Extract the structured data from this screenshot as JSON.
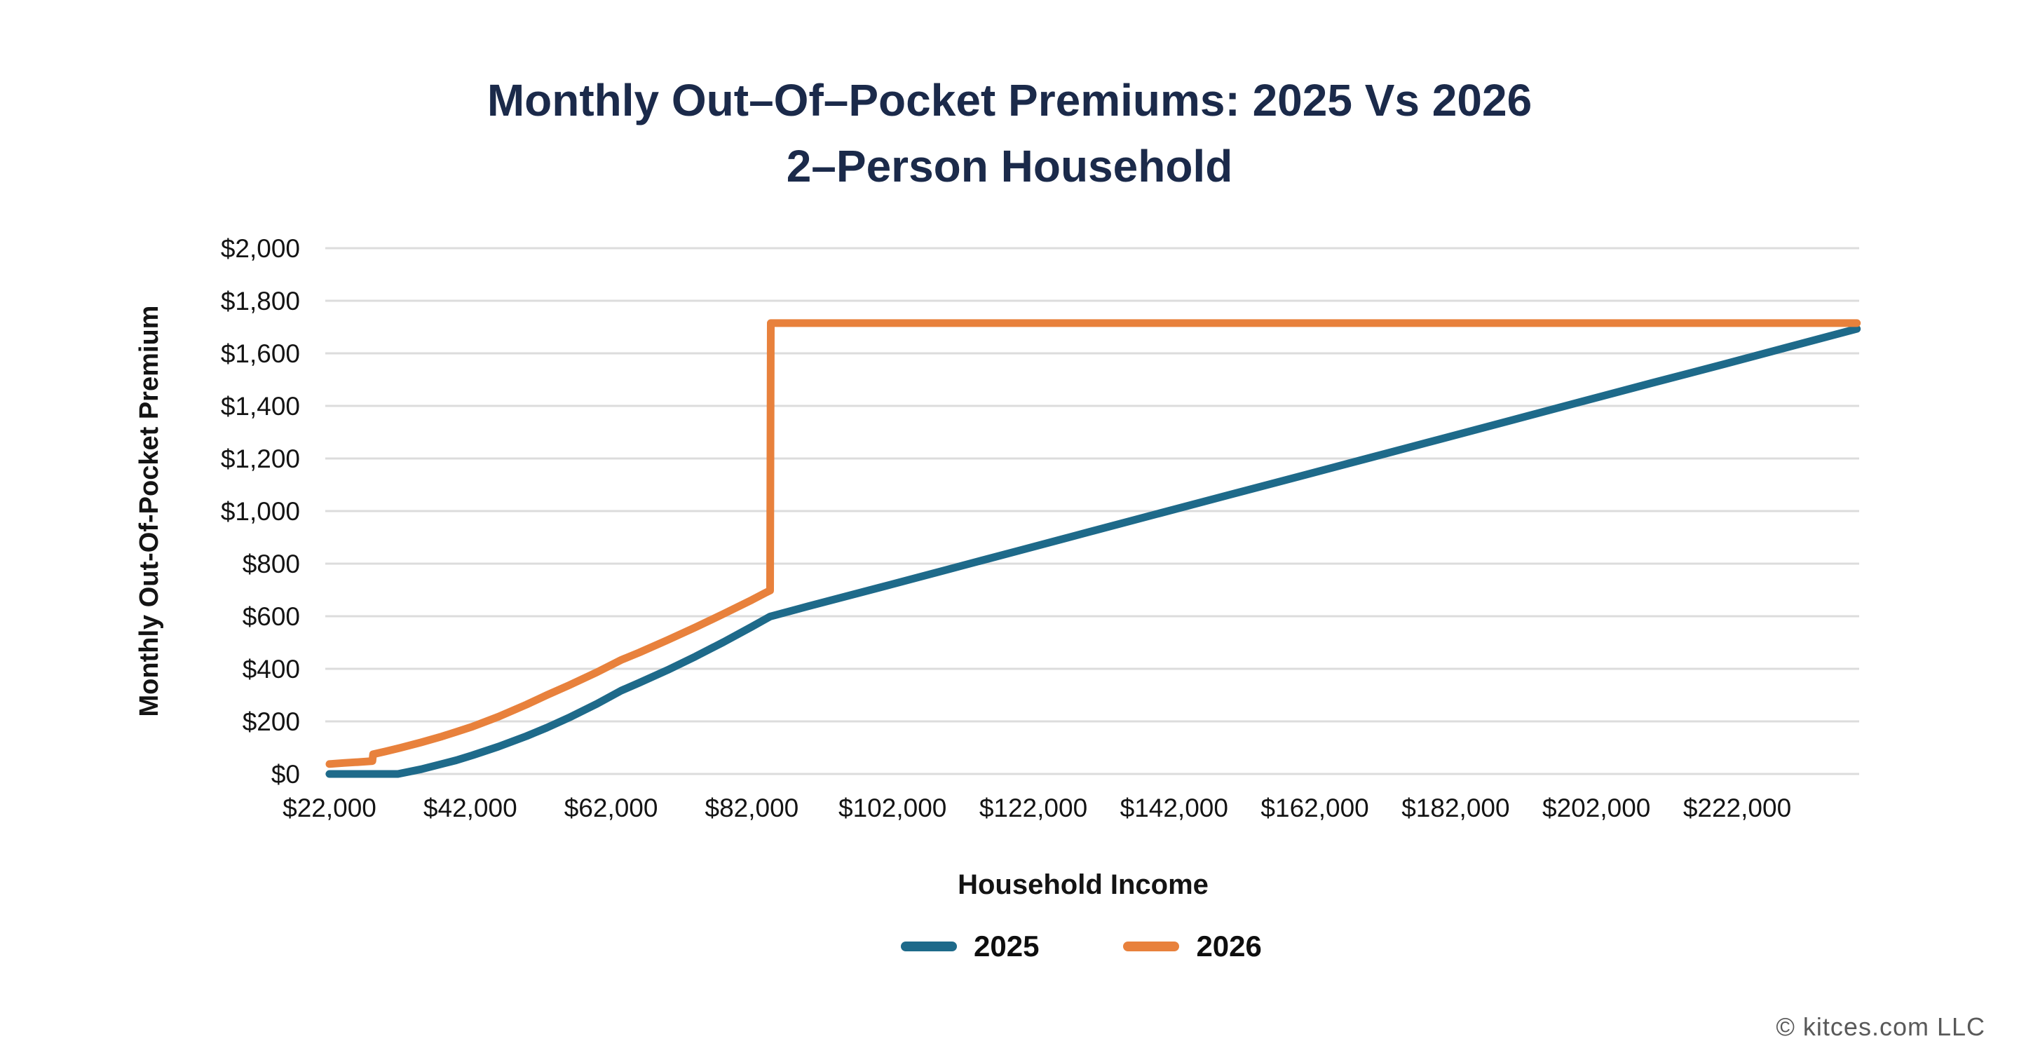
{
  "page": {
    "footer": "© kitces.com LLC"
  },
  "chart_data": {
    "type": "line",
    "title_line1": "Monthly Out–Of–Pocket Premiums: 2025 Vs 2026",
    "title_line2": "2–Person Household",
    "title_color": "#1B2A4A",
    "xlabel": "Household Income",
    "ylabel": "Monthly Out-Of-Pocket Premium",
    "xlim": [
      20500,
      240500
    ],
    "ylim": [
      0,
      2000
    ],
    "grid": "horizontal-only",
    "gridline_color": "#DCDCDC",
    "legend_position": "bottom-center",
    "x_ticks": [
      {
        "value": 22000,
        "label": "$22,000"
      },
      {
        "value": 42000,
        "label": "$42,000"
      },
      {
        "value": 62000,
        "label": "$62,000"
      },
      {
        "value": 82000,
        "label": "$82,000"
      },
      {
        "value": 102000,
        "label": "$102,000"
      },
      {
        "value": 122000,
        "label": "$122,000"
      },
      {
        "value": 142000,
        "label": "$142,000"
      },
      {
        "value": 162000,
        "label": "$162,000"
      },
      {
        "value": 182000,
        "label": "$182,000"
      },
      {
        "value": 202000,
        "label": "$202,000"
      },
      {
        "value": 222000,
        "label": "$222,000"
      }
    ],
    "y_ticks": [
      {
        "value": 0,
        "label": "$0"
      },
      {
        "value": 200,
        "label": "$200"
      },
      {
        "value": 400,
        "label": "$400"
      },
      {
        "value": 600,
        "label": "$600"
      },
      {
        "value": 800,
        "label": "$800"
      },
      {
        "value": 1000,
        "label": "$1,000"
      },
      {
        "value": 1200,
        "label": "$1,200"
      },
      {
        "value": 1400,
        "label": "$1,400"
      },
      {
        "value": 1600,
        "label": "$1,600"
      },
      {
        "value": 1800,
        "label": "$1,800"
      },
      {
        "value": 2000,
        "label": "$2,000"
      }
    ],
    "series": [
      {
        "name": "2025",
        "color": "#1E6A8A",
        "points": [
          [
            22000,
            0
          ],
          [
            26000,
            0
          ],
          [
            30000,
            0
          ],
          [
            31725,
            0
          ],
          [
            35000,
            18
          ],
          [
            40000,
            52
          ],
          [
            42300,
            71
          ],
          [
            46000,
            104
          ],
          [
            50000,
            144
          ],
          [
            52875,
            176
          ],
          [
            56000,
            214
          ],
          [
            60000,
            267
          ],
          [
            63450,
            317
          ],
          [
            66000,
            347
          ],
          [
            70000,
            395
          ],
          [
            74000,
            447
          ],
          [
            78000,
            502
          ],
          [
            82000,
            560
          ],
          [
            84600,
            599
          ],
          [
            90000,
            638
          ],
          [
            100000,
            708
          ],
          [
            110000,
            779
          ],
          [
            120000,
            850
          ],
          [
            130000,
            921
          ],
          [
            140000,
            992
          ],
          [
            150000,
            1063
          ],
          [
            160000,
            1133
          ],
          [
            170000,
            1204
          ],
          [
            180000,
            1275
          ],
          [
            190000,
            1346
          ],
          [
            200000,
            1417
          ],
          [
            210000,
            1488
          ],
          [
            220000,
            1558
          ],
          [
            230000,
            1629
          ],
          [
            239000,
            1693
          ]
        ]
      },
      {
        "name": "2026",
        "color": "#E8813C",
        "points": [
          [
            22000,
            38
          ],
          [
            24000,
            42
          ],
          [
            26000,
            45
          ],
          [
            28100,
            49
          ],
          [
            28200,
            75
          ],
          [
            30000,
            86
          ],
          [
            32000,
            99
          ],
          [
            35000,
            120
          ],
          [
            38000,
            143
          ],
          [
            40000,
            160
          ],
          [
            42300,
            180
          ],
          [
            46000,
            218
          ],
          [
            50000,
            264
          ],
          [
            52875,
            300
          ],
          [
            56000,
            337
          ],
          [
            60000,
            387
          ],
          [
            63450,
            434
          ],
          [
            66000,
            462
          ],
          [
            70000,
            509
          ],
          [
            74000,
            558
          ],
          [
            78000,
            609
          ],
          [
            82000,
            662
          ],
          [
            84000,
            690
          ],
          [
            84600,
            698
          ],
          [
            84700,
            1715
          ],
          [
            100000,
            1715
          ],
          [
            120000,
            1715
          ],
          [
            140000,
            1715
          ],
          [
            160000,
            1715
          ],
          [
            180000,
            1715
          ],
          [
            200000,
            1715
          ],
          [
            220000,
            1715
          ],
          [
            239000,
            1715
          ]
        ]
      }
    ]
  }
}
